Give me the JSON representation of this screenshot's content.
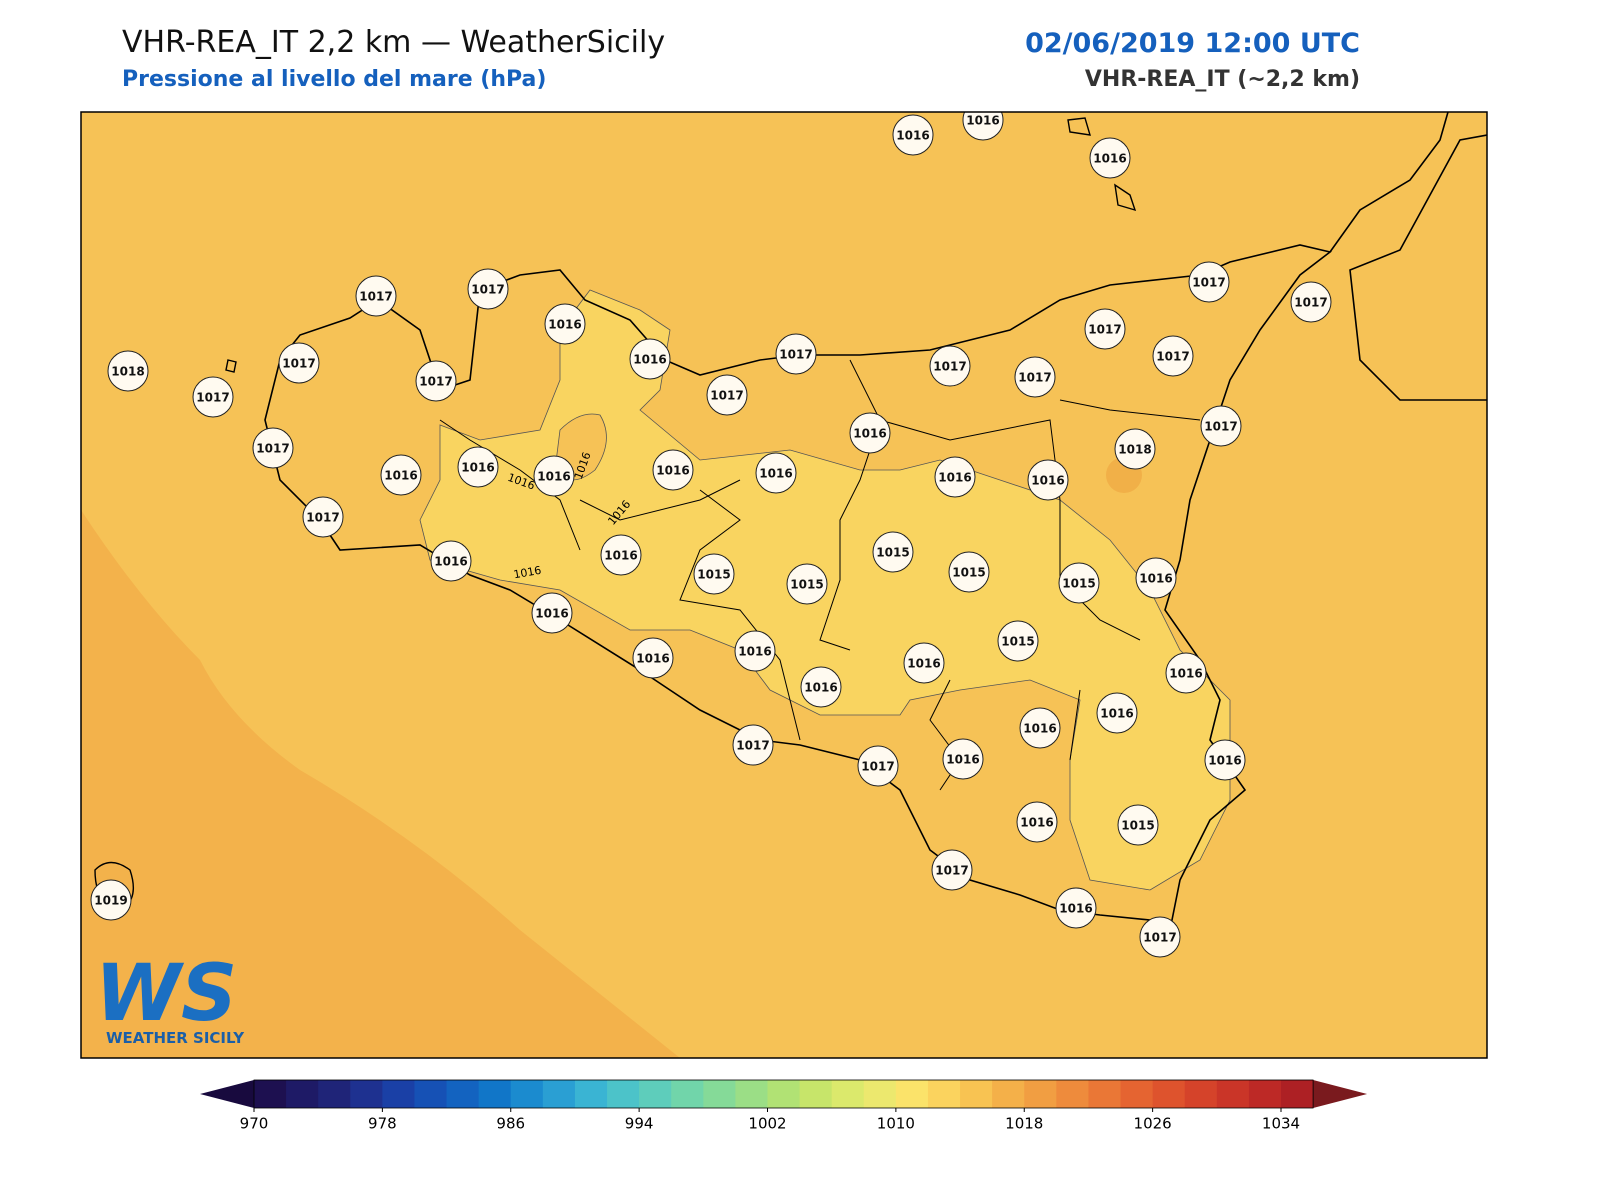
{
  "header": {
    "title": "VHR-REA_IT 2,2 km — WeatherSicily",
    "subtitle": "Pressione al livello del mare (hPa)",
    "date": "02/06/2019 12:00 UTC",
    "model": "VHR-REA_IT (~2,2 km)"
  },
  "stations": [
    1016,
    1016,
    1016,
    1017,
    1017,
    1017,
    1017,
    1016,
    1016,
    1017,
    1017,
    1017,
    1017,
    1017,
    1017,
    1018,
    1017,
    1017,
    1017,
    1017,
    1016,
    1017,
    1018,
    1016,
    1016,
    1016,
    1016,
    1016,
    1016,
    1016,
    1017,
    1016,
    1016,
    1015,
    1015,
    1015,
    1015,
    1015,
    1016,
    1016,
    1016,
    1016,
    1016,
    1016,
    1015,
    1016,
    1016,
    1016,
    1017,
    1017,
    1016,
    1016,
    1016,
    1015,
    1019,
    1017,
    1016,
    1017
  ],
  "contour_labels": [
    1016,
    1016,
    1016,
    1016
  ],
  "colorbar": {
    "ticks": [
      970,
      978,
      986,
      994,
      1002,
      1010,
      1018,
      1026,
      1034
    ]
  },
  "logo": {
    "mark": "WS",
    "text": "WEATHER SICILY"
  }
}
